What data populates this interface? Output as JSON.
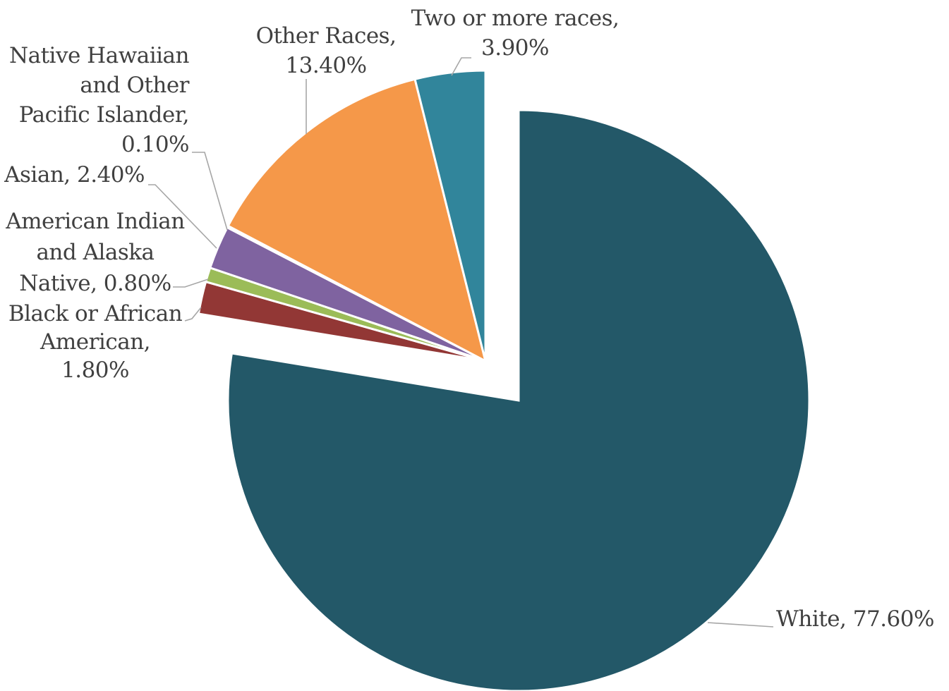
{
  "chart_data": {
    "type": "pie",
    "title": "",
    "legend": "none",
    "exploded": "White",
    "slices": [
      {
        "name": "White",
        "value": 77.6,
        "color": "#235868",
        "label_lines": [
          "White, 77.60%"
        ]
      },
      {
        "name": "Black or African American",
        "value": 1.8,
        "color": "#923735",
        "label_lines": [
          "Black or African",
          "American,",
          "1.80%"
        ]
      },
      {
        "name": "American Indian and Alaska Native",
        "value": 0.8,
        "color": "#9bbc58",
        "label_lines": [
          "American Indian",
          "and Alaska",
          "Native, 0.80%"
        ]
      },
      {
        "name": "Asian",
        "value": 2.4,
        "color": "#7f63a0",
        "label_lines": [
          "Asian, 2.40%"
        ]
      },
      {
        "name": "Native Hawaiian and Other Pacific Islander",
        "value": 0.1,
        "color": "#3e7aa6",
        "label_lines": [
          "Native Hawaiian",
          "and Other",
          "Pacific Islander,",
          "0.10%"
        ]
      },
      {
        "name": "Other Races",
        "value": 13.4,
        "color": "#f59849",
        "label_lines": [
          "Other Races,",
          "13.40%"
        ]
      },
      {
        "name": "Two or more races",
        "value": 3.9,
        "color": "#31859b",
        "label_lines": [
          "Two or more races,",
          "3.90%"
        ]
      }
    ]
  }
}
